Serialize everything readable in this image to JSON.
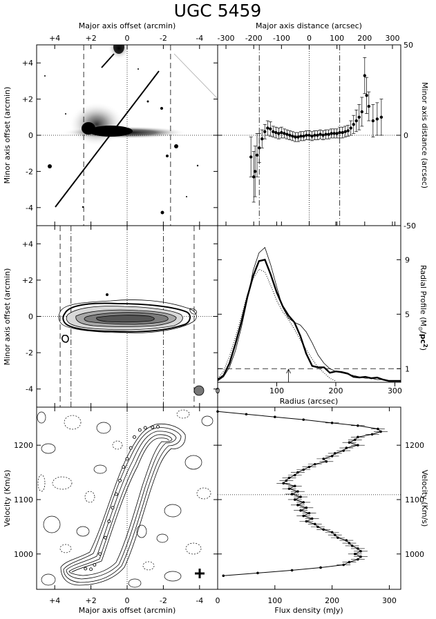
{
  "title": "UGC 5459",
  "chart_data": [
    {
      "id": "optical_image",
      "type": "image",
      "xlabel_top": "Major axis offset (arcmin)",
      "ylabel": "Minor axis offset (arcmin)",
      "xlim": [
        5,
        -5
      ],
      "ylim": [
        -5,
        5
      ],
      "xticks": [
        "+4",
        "+2",
        "0",
        "-2",
        "-4"
      ],
      "yticks": [
        "+4",
        "+2",
        "0",
        "-2",
        "-4"
      ],
      "x_tick_values": [
        4,
        2,
        0,
        -2,
        -4
      ],
      "y_tick_values": [
        4,
        2,
        0,
        -2,
        -4
      ],
      "dashed_lines_x": [
        2.4,
        -2.4
      ]
    },
    {
      "id": "minor_axis_offsets",
      "type": "scatter",
      "xlabel_top": "Major axis distance (arcsec)",
      "ylabel_right": "Minor axis distance (arcsec)",
      "xlim": [
        -330,
        330
      ],
      "ylim": [
        -50,
        50
      ],
      "xticks": [
        "-300",
        "-200",
        "-100",
        "0",
        "100",
        "200",
        "300"
      ],
      "yticks": [
        "50",
        "0",
        "-50"
      ],
      "x_tick_values": [
        -300,
        -200,
        -100,
        0,
        100,
        200,
        300
      ],
      "y_tick_values": [
        50,
        0,
        -50
      ],
      "dash_dot_lines_x": [
        -180,
        110
      ],
      "points": [
        {
          "x": -210,
          "y": -12,
          "err": 11
        },
        {
          "x": -200,
          "y": -23,
          "err": 14
        },
        {
          "x": -195,
          "y": -20,
          "err": 14
        },
        {
          "x": -188,
          "y": -11,
          "err": 12
        },
        {
          "x": -180,
          "y": -7,
          "err": 8
        },
        {
          "x": -170,
          "y": -2,
          "err": 5
        },
        {
          "x": -160,
          "y": 2,
          "err": 4
        },
        {
          "x": -150,
          "y": 4,
          "err": 4
        },
        {
          "x": -140,
          "y": 3.5,
          "err": 4
        },
        {
          "x": -130,
          "y": 2,
          "err": 3
        },
        {
          "x": -120,
          "y": 1.5,
          "err": 3
        },
        {
          "x": -110,
          "y": 1,
          "err": 3
        },
        {
          "x": -100,
          "y": 1.5,
          "err": 3
        },
        {
          "x": -90,
          "y": 1,
          "err": 2.5
        },
        {
          "x": -80,
          "y": 0.5,
          "err": 2.5
        },
        {
          "x": -70,
          "y": 0,
          "err": 2.5
        },
        {
          "x": -60,
          "y": -0.5,
          "err": 2.5
        },
        {
          "x": -50,
          "y": -1,
          "err": 2.5
        },
        {
          "x": -40,
          "y": -1,
          "err": 2.5
        },
        {
          "x": -30,
          "y": -0.5,
          "err": 2.5
        },
        {
          "x": -20,
          "y": -0.5,
          "err": 2.5
        },
        {
          "x": -10,
          "y": 0,
          "err": 2.5
        },
        {
          "x": 0,
          "y": 0,
          "err": 2.5
        },
        {
          "x": 10,
          "y": -0.5,
          "err": 2.5
        },
        {
          "x": 20,
          "y": 0,
          "err": 2.5
        },
        {
          "x": 30,
          "y": 0,
          "err": 2.5
        },
        {
          "x": 40,
          "y": 0.5,
          "err": 2.5
        },
        {
          "x": 50,
          "y": 0,
          "err": 2.5
        },
        {
          "x": 60,
          "y": 0.5,
          "err": 2.5
        },
        {
          "x": 70,
          "y": 0.5,
          "err": 2.5
        },
        {
          "x": 80,
          "y": 1,
          "err": 2.5
        },
        {
          "x": 90,
          "y": 1,
          "err": 2.5
        },
        {
          "x": 100,
          "y": 1,
          "err": 2.5
        },
        {
          "x": 110,
          "y": 1.5,
          "err": 3
        },
        {
          "x": 120,
          "y": 1.5,
          "err": 3
        },
        {
          "x": 130,
          "y": 2,
          "err": 3
        },
        {
          "x": 140,
          "y": 2.5,
          "err": 3
        },
        {
          "x": 150,
          "y": 4,
          "err": 4
        },
        {
          "x": 160,
          "y": 6,
          "err": 5
        },
        {
          "x": 170,
          "y": 8,
          "err": 6
        },
        {
          "x": 180,
          "y": 10,
          "err": 7
        },
        {
          "x": 190,
          "y": 13,
          "err": 8
        },
        {
          "x": 200,
          "y": 33,
          "err": 10
        },
        {
          "x": 207,
          "y": 22,
          "err": 10
        },
        {
          "x": 215,
          "y": 16,
          "err": 8
        },
        {
          "x": 230,
          "y": 8,
          "err": 9
        },
        {
          "x": 245,
          "y": 9,
          "err": 9
        },
        {
          "x": 260,
          "y": 10,
          "err": 10
        }
      ]
    },
    {
      "id": "total_hi_map",
      "type": "contour",
      "ylabel": "Minor axis offset (arcmin)",
      "xlim": [
        5,
        -5
      ],
      "ylim": [
        -5,
        5
      ],
      "yticks": [
        "+4",
        "+2",
        "0",
        "-2",
        "-4"
      ],
      "y_tick_values": [
        4,
        2,
        0,
        -2,
        -4
      ],
      "dashed_lines_x": [
        3.7,
        -3.7
      ],
      "dash_dot_lines_x": [
        3.1,
        -2.0
      ]
    },
    {
      "id": "radial_profile",
      "type": "line",
      "xlabel": "Radius (arcsec)",
      "ylabel_right": "Radial Profile (M",
      "ylabel_sub": "⊙",
      "ylabel_tail": "/pc",
      "ylabel_sup": "2",
      "ylabel_close": ")",
      "xlim": [
        0,
        310
      ],
      "ylim": [
        0,
        11.5
      ],
      "xticks": [
        "0",
        "100",
        "200",
        "300"
      ],
      "yticks": [
        "1",
        "5",
        "9"
      ],
      "x_tick_values": [
        0,
        100,
        200,
        300
      ],
      "y_tick_values": [
        1,
        5,
        9
      ],
      "hline_y": 1,
      "arrow_x": 120,
      "series": [
        {
          "style": "thick",
          "x": [
            0,
            10,
            20,
            30,
            40,
            50,
            60,
            70,
            80,
            90,
            100,
            110,
            120,
            130,
            140,
            150,
            160,
            170,
            180,
            190,
            200,
            210,
            220,
            230,
            240,
            250,
            260,
            270,
            280,
            290,
            300,
            310
          ],
          "y": [
            0.2,
            0.5,
            1.4,
            2.8,
            4.4,
            6.2,
            7.8,
            8.9,
            9.0,
            7.9,
            6.6,
            5.6,
            4.9,
            4.4,
            3.4,
            2.1,
            1.2,
            1.1,
            1.1,
            0.7,
            0.8,
            0.75,
            0.65,
            0.4,
            0.35,
            0.4,
            0.3,
            0.35,
            0.2,
            0.1,
            0.1,
            0.1
          ]
        },
        {
          "style": "thin",
          "x": [
            0,
            10,
            20,
            30,
            40,
            50,
            60,
            70,
            80,
            90,
            100,
            110,
            120,
            130,
            140,
            150,
            160,
            170,
            180,
            190,
            200,
            210,
            220,
            230,
            240,
            250,
            260,
            270,
            280,
            290,
            300,
            310
          ],
          "y": [
            0.1,
            0.4,
            1.1,
            2.3,
            4.0,
            6.0,
            8.2,
            9.5,
            9.9,
            8.6,
            7.0,
            5.5,
            4.7,
            4.4,
            4.2,
            3.7,
            2.9,
            2.0,
            1.4,
            1.0,
            0.8,
            0.7,
            0.6,
            0.5,
            0.4,
            0.3,
            0.3,
            0.2,
            0.2,
            0.1,
            0.1,
            0.1
          ]
        },
        {
          "style": "dotted",
          "x": [
            0,
            10,
            20,
            30,
            40,
            50,
            60,
            70,
            80,
            90,
            100,
            110,
            120,
            130,
            140,
            150,
            160,
            170,
            180,
            190,
            200
          ],
          "y": [
            0.3,
            0.8,
            1.9,
            3.3,
            4.8,
            6.4,
            7.6,
            8.3,
            8.1,
            7.1,
            6.0,
            5.2,
            4.6,
            3.9,
            3.1,
            2.4,
            1.7,
            1.1,
            0.7,
            0.3,
            0.1
          ]
        }
      ]
    },
    {
      "id": "position_velocity",
      "type": "contour",
      "xlabel": "Major axis offset (arcmin)",
      "ylabel": "Velocity (Km/s)",
      "xlim": [
        5,
        -5
      ],
      "ylim": [
        935,
        1270
      ],
      "xticks": [
        "+4",
        "+2",
        "0",
        "-2",
        "-4"
      ],
      "yticks": [
        "1200",
        "1100",
        "1000"
      ],
      "x_tick_values": [
        4,
        2,
        0,
        -2,
        -4
      ],
      "y_tick_values": [
        1200,
        1100,
        1000
      ],
      "rotation_curve": [
        {
          "x": 2.3,
          "v": 973
        },
        {
          "x": 2.0,
          "v": 972
        },
        {
          "x": 1.8,
          "v": 980
        },
        {
          "x": 1.5,
          "v": 1000
        },
        {
          "x": 1.2,
          "v": 1030
        },
        {
          "x": 1.0,
          "v": 1060
        },
        {
          "x": 0.8,
          "v": 1085
        },
        {
          "x": 0.6,
          "v": 1110
        },
        {
          "x": 0.4,
          "v": 1135
        },
        {
          "x": 0.2,
          "v": 1160
        },
        {
          "x": 0.0,
          "v": 1175
        },
        {
          "x": -0.2,
          "v": 1195
        },
        {
          "x": -0.4,
          "v": 1215
        },
        {
          "x": -0.7,
          "v": 1228
        },
        {
          "x": -1.0,
          "v": 1232
        },
        {
          "x": -1.4,
          "v": 1233
        },
        {
          "x": -1.7,
          "v": 1234
        }
      ]
    },
    {
      "id": "global_profile",
      "type": "line",
      "xlabel": "Flux density (mJy)",
      "ylabel_right": "Velocity (Km/s)",
      "xlim": [
        0,
        320
      ],
      "ylim": [
        935,
        1270
      ],
      "xticks": [
        "0",
        "100",
        "200",
        "300"
      ],
      "yticks": [
        "1200",
        "1100",
        "1000"
      ],
      "x_tick_values": [
        0,
        100,
        200,
        300
      ],
      "y_tick_values": [
        1200,
        1100,
        1000
      ],
      "hline_v": 1109,
      "profile": [
        {
          "v": 1262,
          "f": 0
        },
        {
          "v": 1257,
          "f": 50
        },
        {
          "v": 1252,
          "f": 100
        },
        {
          "v": 1247,
          "f": 150
        },
        {
          "v": 1241,
          "f": 200
        },
        {
          "v": 1236,
          "f": 245
        },
        {
          "v": 1230,
          "f": 280
        },
        {
          "v": 1225,
          "f": 285
        },
        {
          "v": 1220,
          "f": 270
        },
        {
          "v": 1215,
          "f": 245
        },
        {
          "v": 1210,
          "f": 240
        },
        {
          "v": 1205,
          "f": 230
        },
        {
          "v": 1200,
          "f": 245
        },
        {
          "v": 1195,
          "f": 225
        },
        {
          "v": 1190,
          "f": 220
        },
        {
          "v": 1185,
          "f": 205
        },
        {
          "v": 1180,
          "f": 200
        },
        {
          "v": 1175,
          "f": 185
        },
        {
          "v": 1170,
          "f": 190
        },
        {
          "v": 1165,
          "f": 170
        },
        {
          "v": 1160,
          "f": 160
        },
        {
          "v": 1155,
          "f": 150
        },
        {
          "v": 1150,
          "f": 140
        },
        {
          "v": 1145,
          "f": 135
        },
        {
          "v": 1140,
          "f": 125
        },
        {
          "v": 1135,
          "f": 120
        },
        {
          "v": 1130,
          "f": 115
        },
        {
          "v": 1125,
          "f": 135
        },
        {
          "v": 1120,
          "f": 125
        },
        {
          "v": 1115,
          "f": 140
        },
        {
          "v": 1110,
          "f": 130
        },
        {
          "v": 1105,
          "f": 145
        },
        {
          "v": 1100,
          "f": 135
        },
        {
          "v": 1095,
          "f": 150
        },
        {
          "v": 1090,
          "f": 140
        },
        {
          "v": 1085,
          "f": 155
        },
        {
          "v": 1080,
          "f": 145
        },
        {
          "v": 1075,
          "f": 160
        },
        {
          "v": 1070,
          "f": 150
        },
        {
          "v": 1065,
          "f": 165
        },
        {
          "v": 1060,
          "f": 155
        },
        {
          "v": 1055,
          "f": 170
        },
        {
          "v": 1050,
          "f": 175
        },
        {
          "v": 1045,
          "f": 185
        },
        {
          "v": 1040,
          "f": 200
        },
        {
          "v": 1035,
          "f": 205
        },
        {
          "v": 1030,
          "f": 210
        },
        {
          "v": 1025,
          "f": 225
        },
        {
          "v": 1020,
          "f": 230
        },
        {
          "v": 1015,
          "f": 235
        },
        {
          "v": 1010,
          "f": 245
        },
        {
          "v": 1005,
          "f": 250
        },
        {
          "v": 1000,
          "f": 240
        },
        {
          "v": 995,
          "f": 250
        },
        {
          "v": 990,
          "f": 245
        },
        {
          "v": 985,
          "f": 230
        },
        {
          "v": 980,
          "f": 220
        },
        {
          "v": 975,
          "f": 180
        },
        {
          "v": 970,
          "f": 130
        },
        {
          "v": 965,
          "f": 70
        },
        {
          "v": 960,
          "f": 10
        }
      ]
    }
  ]
}
